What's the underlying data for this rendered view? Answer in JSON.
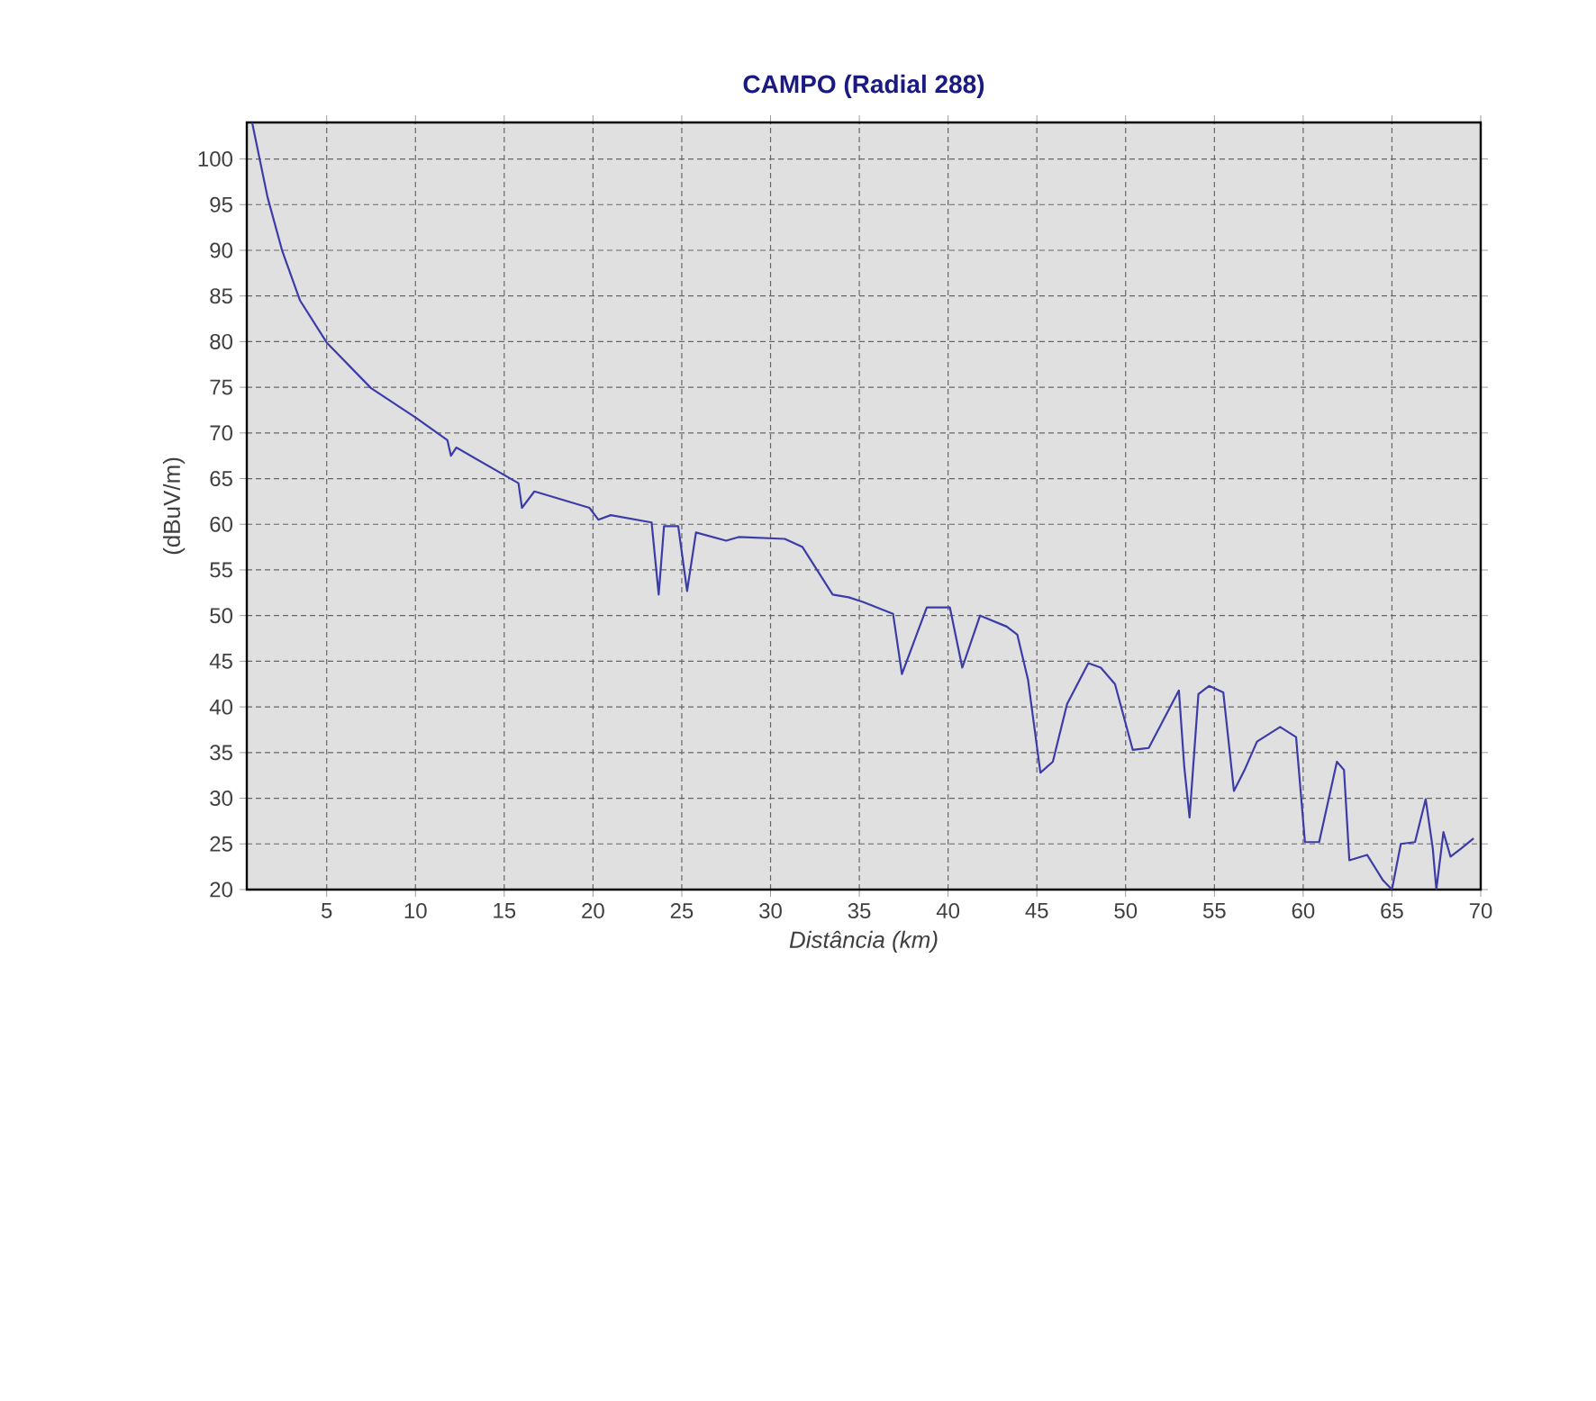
{
  "chart_data": {
    "type": "line",
    "title": "CAMPO (Radial 288)",
    "xlabel": "*Distância (km)*",
    "ylabel": "(dBuV/m)",
    "x": [
      0.8,
      1.67,
      2.5,
      3.5,
      5,
      7.5,
      10,
      11.8,
      12,
      12.3,
      15.8,
      16,
      16.7,
      19.8,
      20.3,
      21,
      23.3,
      23.7,
      24,
      24.8,
      25.3,
      25.8,
      27.5,
      28.2,
      30.8,
      31.8,
      33.5,
      34.4,
      35.2,
      36.9,
      37.4,
      38.8,
      40.1,
      40.8,
      41.8,
      43.3,
      43.9,
      44.5,
      45.2,
      45.9,
      46.7,
      47.9,
      48.6,
      49.4,
      50.4,
      51.3,
      53,
      53.3,
      53.6,
      54.1,
      54.7,
      55.5,
      56.1,
      56.7,
      57.4,
      58.7,
      59.6,
      60.1,
      60.9,
      61.9,
      62.3,
      62.6,
      63.6,
      64.5,
      65,
      65.5,
      66.3,
      66.9,
      67.3,
      67.5,
      67.9,
      68.3,
      68.9,
      69.6
    ],
    "values": [
      104,
      95.8,
      89.9,
      84.5,
      79.9,
      74.9,
      71.7,
      69.2,
      67.5,
      68.4,
      64.5,
      61.8,
      63.6,
      61.8,
      60.5,
      61,
      60.2,
      52.3,
      59.8,
      59.8,
      52.7,
      59.1,
      58.2,
      58.6,
      58.4,
      57.5,
      52.3,
      52,
      51.5,
      50.2,
      43.6,
      50.9,
      50.9,
      44.3,
      50,
      48.8,
      47.9,
      43,
      32.8,
      34,
      40.3,
      44.8,
      44.3,
      42.5,
      35.3,
      35.5,
      41.8,
      33.5,
      27.9,
      41.4,
      42.3,
      41.6,
      30.8,
      33.1,
      36.2,
      37.8,
      36.7,
      25.2,
      25.2,
      34,
      33.1,
      23.2,
      23.8,
      21,
      20,
      25,
      25.2,
      29.9,
      24.5,
      20,
      26.3,
      23.6,
      24.5,
      25.6
    ],
    "color": "#3c3ca8",
    "xlim": [
      0.5,
      70
    ],
    "ylim": [
      20,
      104
    ],
    "xticks": [
      5,
      10,
      15,
      20,
      25,
      30,
      35,
      40,
      45,
      50,
      55,
      60,
      65,
      70
    ],
    "yticks": [
      20,
      25,
      30,
      35,
      40,
      45,
      50,
      55,
      60,
      65,
      70,
      75,
      80,
      85,
      90,
      95,
      100
    ],
    "grid": true
  }
}
